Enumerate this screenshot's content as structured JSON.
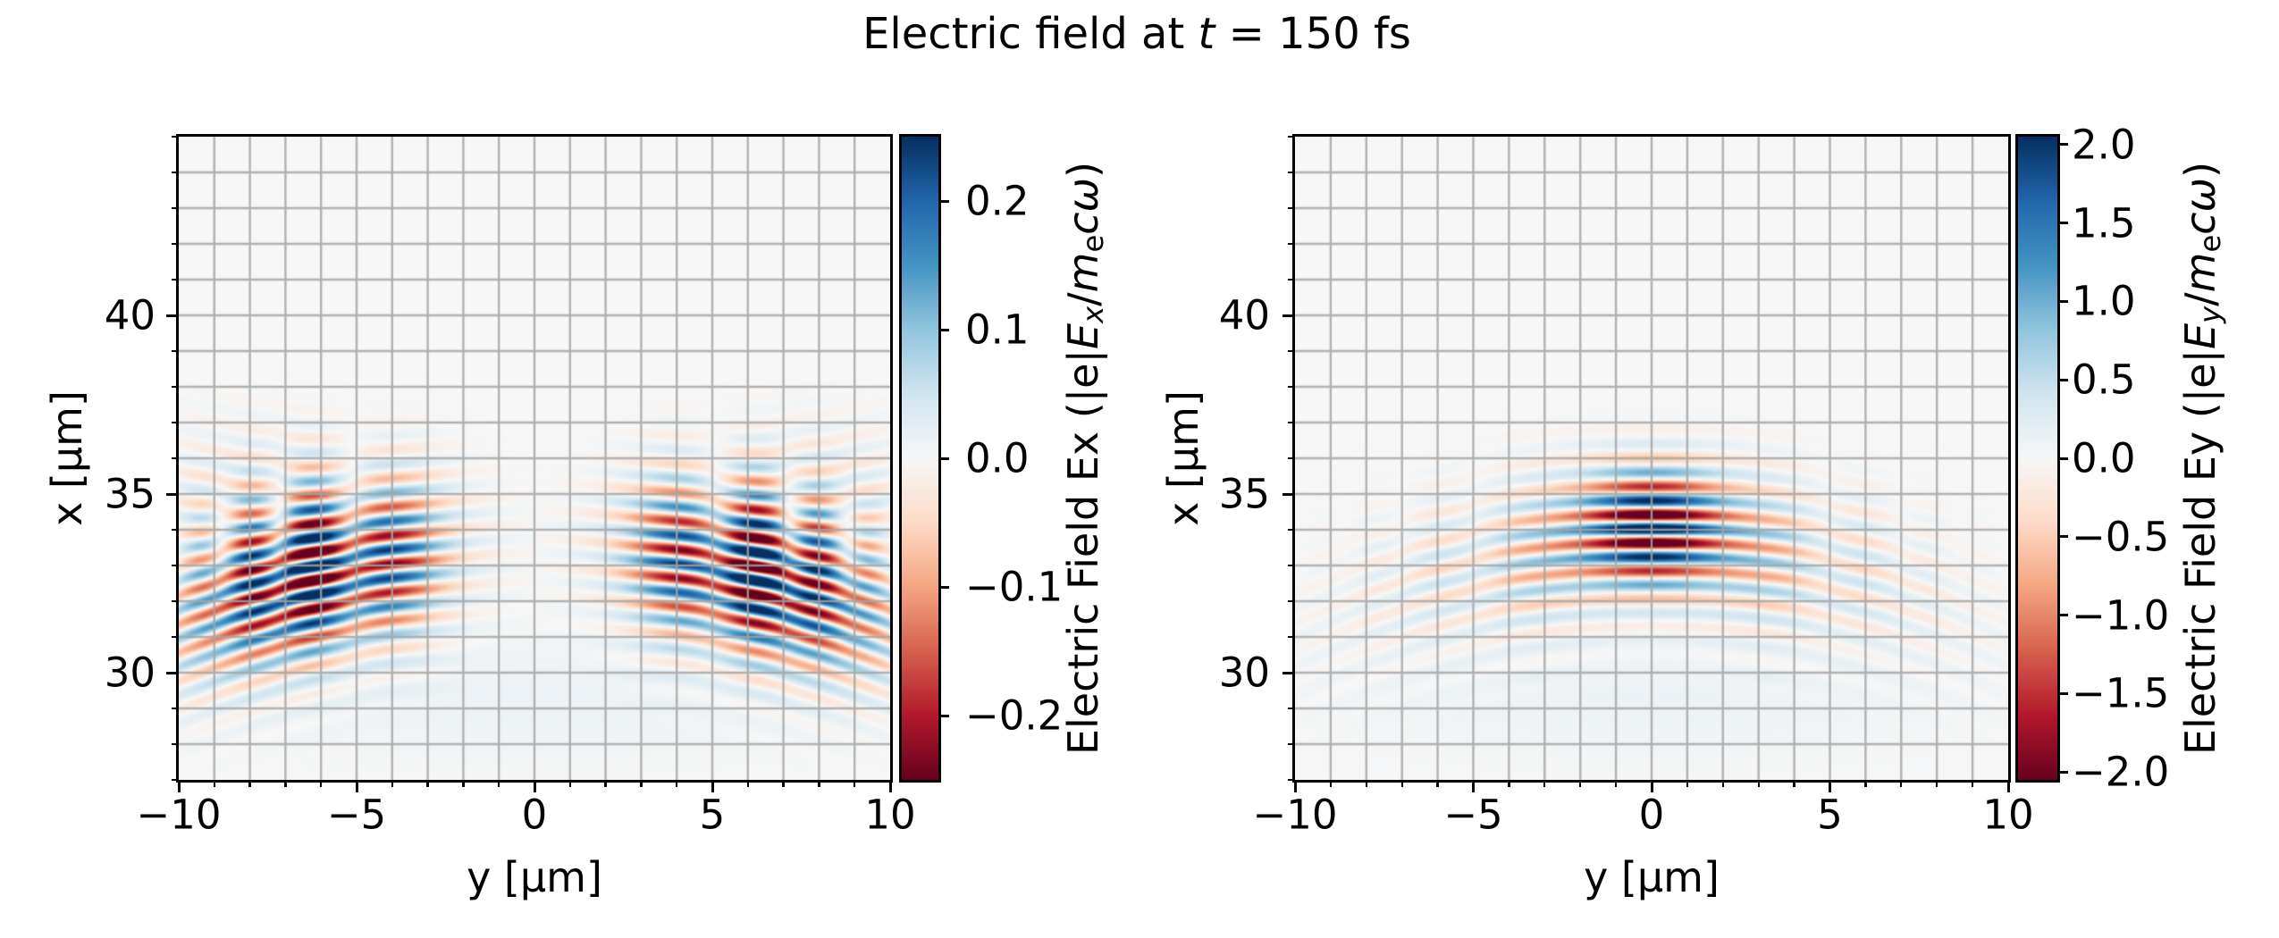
{
  "title_parts": [
    {
      "text": "Electric field at "
    },
    {
      "text": "t",
      "italic": true
    },
    {
      "text": " = 150 fs"
    }
  ],
  "colors": {
    "background": "#ffffff",
    "axes_background": "#f7f7f7",
    "grid": "#a5a5a5",
    "spine": "#000000",
    "colormap_max_blue": "#053061",
    "colormap_mid": "#f7f7f7",
    "colormap_min_red": "#67001f"
  },
  "chart_data": [
    {
      "type": "heatmap",
      "name": "Ex",
      "xlabel": "y [μm]",
      "ylabel": "x [μm]",
      "x_axis": {
        "range": [
          -10,
          10
        ],
        "major_ticks": [
          -10,
          -5,
          0,
          5,
          10
        ],
        "major_tick_labels": [
          "−10",
          "−5",
          "0",
          "5",
          "10"
        ],
        "minor_tick_step": 1
      },
      "y_axis": {
        "range": [
          27,
          45
        ],
        "major_ticks": [
          30,
          35,
          40
        ],
        "major_tick_labels": [
          "30",
          "35",
          "40"
        ],
        "minor_tick_step": 1
      },
      "grid": {
        "visible": true,
        "step": 1
      },
      "colormap": "RdBu",
      "colorbar": {
        "clim": [
          -0.25,
          0.25
        ],
        "ticks": [
          0.2,
          0.1,
          0.0,
          -0.1,
          -0.2
        ],
        "tick_labels": [
          "0.2",
          "0.1",
          "0.0",
          "−0.1",
          "−0.2"
        ],
        "label_parts": [
          {
            "text": "Electric Field Ex (|e|"
          },
          {
            "text": "E",
            "italic": true
          },
          {
            "text": "x",
            "italic": true,
            "sub": true
          },
          {
            "text": "/"
          },
          {
            "text": "m",
            "italic": true
          },
          {
            "text": "e",
            "sub": true
          },
          {
            "text": "c",
            "italic": true
          },
          {
            "text": "ω",
            "italic": true
          },
          {
            "text": ")"
          }
        ]
      },
      "description": "Transverse field Ex of a laser pulse at t = 150 fs: two odd-symmetry lobes near y = ±6.5 μm, tilted interfering fringes of period 0.8 μm centered near x = 33.5 μm, zero amplitude on axis y = 0.",
      "field_model": {
        "wavelength_um": 0.8,
        "components": [
          {
            "kind": "wave",
            "amp": 0.3,
            "x0": 33.45,
            "R": 25,
            "sigU": 2.1,
            "phase": 0.8,
            "yenv": {
              "type": "oddRing",
              "r0": 6.3,
              "sig": 3.4
            }
          },
          {
            "kind": "wave",
            "amp": 0.1,
            "x0": 33.25,
            "R": -45,
            "sigU": 2.3,
            "phase": 2.5,
            "yenv": {
              "type": "oddRing",
              "r0": 6.3,
              "sig": 3.4
            }
          },
          {
            "kind": "glow",
            "amp": 0.015,
            "x0": 29.3,
            "sigU": 1.8,
            "yenv": {
              "type": "gauss",
              "sig": 9
            }
          }
        ]
      }
    },
    {
      "type": "heatmap",
      "name": "Ey",
      "xlabel": "y [μm]",
      "ylabel": "x [μm]",
      "x_axis": {
        "range": [
          -10,
          10
        ],
        "major_ticks": [
          -10,
          -5,
          0,
          5,
          10
        ],
        "major_tick_labels": [
          "−10",
          "−5",
          "0",
          "5",
          "10"
        ],
        "minor_tick_step": 1
      },
      "y_axis": {
        "range": [
          27,
          45
        ],
        "major_ticks": [
          30,
          35,
          40
        ],
        "major_tick_labels": [
          "30",
          "35",
          "40"
        ],
        "minor_tick_step": 1
      },
      "grid": {
        "visible": true,
        "step": 1
      },
      "colormap": "RdBu",
      "colorbar": {
        "clim": [
          -2.05,
          2.05
        ],
        "ticks": [
          2.0,
          1.5,
          1.0,
          0.5,
          0.0,
          -0.5,
          -1.0,
          -1.5,
          -2.0
        ],
        "tick_labels": [
          "2.0",
          "1.5",
          "1.0",
          "0.5",
          "0.0",
          "−0.5",
          "−1.0",
          "−1.5",
          "−2.0"
        ],
        "label_parts": [
          {
            "text": "Electric Field Ey (|e|"
          },
          {
            "text": "E",
            "italic": true
          },
          {
            "text": "y",
            "italic": true,
            "sub": true
          },
          {
            "text": "/"
          },
          {
            "text": "m",
            "italic": true
          },
          {
            "text": "e",
            "sub": true
          },
          {
            "text": "c",
            "italic": true
          },
          {
            "text": "ω",
            "italic": true
          },
          {
            "text": ")"
          }
        ]
      },
      "description": "Main polarization Ey at t = 150 fs: strong saturated central lobe (|y| < 2.5 μm) with flat horizontal fringes of period 0.8 μm around x = 34 μm, plus weaker strongly-curved diverging wings out to y = ±10 μm.",
      "field_model": {
        "wavelength_um": 0.8,
        "components": [
          {
            "kind": "wave",
            "amp": 2.6,
            "x0": 34.05,
            "R": 55,
            "sigU": 1.55,
            "phase": 0.3,
            "yenv": {
              "type": "gauss",
              "sig": 1.9
            }
          },
          {
            "kind": "wave",
            "amp": 0.85,
            "x0": 33.5,
            "R": 21,
            "sigU": 2.1,
            "phase": 1.2,
            "yenv": {
              "type": "gaussDip",
              "sig": 6.5,
              "dip": 0.5,
              "dipSig": 2.4
            }
          },
          {
            "kind": "wave",
            "amp": 0.25,
            "x0": 33.3,
            "R": -60,
            "sigU": 2.0,
            "phase": 2.6,
            "yenv": {
              "type": "gaussDip",
              "sig": 6.0,
              "dip": 0.6,
              "dipSig": 2.4
            }
          },
          {
            "kind": "glow",
            "amp": 0.12,
            "x0": 29.3,
            "sigU": 1.8,
            "yenv": {
              "type": "gauss",
              "sig": 9
            }
          }
        ]
      }
    }
  ]
}
